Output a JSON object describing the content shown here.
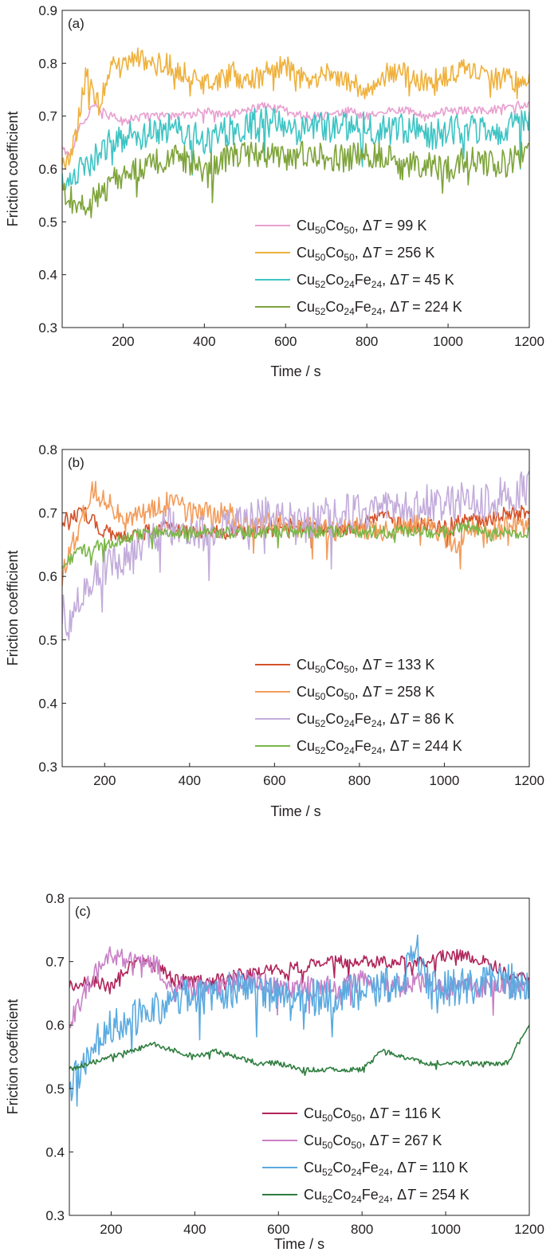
{
  "chart_data": [
    {
      "type": "line",
      "panel_label": "(a)",
      "xlabel": "Time / s",
      "ylabel": "Friction coefficient",
      "xlim": [
        50,
        1200
      ],
      "ylim": [
        0.3,
        0.9
      ],
      "xticks": [
        200,
        400,
        600,
        800,
        1000,
        1200
      ],
      "xtick_labels": [
        "200",
        "400",
        "600",
        "800",
        "1000",
        "1200"
      ],
      "yticks": [
        0.3,
        0.4,
        0.5,
        0.6,
        0.7,
        0.8,
        0.9
      ],
      "ytick_labels": [
        "0.3",
        "0.4",
        "0.5",
        "0.6",
        "0.7",
        "0.8",
        "0.9"
      ],
      "legend_position": "bottom-right",
      "series": [
        {
          "name": "Cu50Co50, ΔT = 99 K",
          "name_parts": {
            "base": "Cu",
            "s1": "50",
            "base2": "Co",
            "s2": "50",
            "suffix": ", ΔT = 99 K"
          },
          "color": "#e8a0d0",
          "x": [
            50,
            70,
            90,
            110,
            130,
            150,
            200,
            250,
            300,
            350,
            400,
            450,
            500,
            550,
            600,
            650,
            700,
            750,
            800,
            850,
            900,
            950,
            1000,
            1050,
            1100,
            1150,
            1200
          ],
          "y": [
            0.64,
            0.62,
            0.68,
            0.7,
            0.72,
            0.71,
            0.69,
            0.7,
            0.7,
            0.7,
            0.71,
            0.7,
            0.71,
            0.72,
            0.71,
            0.7,
            0.7,
            0.71,
            0.7,
            0.71,
            0.71,
            0.7,
            0.71,
            0.71,
            0.71,
            0.72,
            0.72
          ],
          "noise": 0.008
        },
        {
          "name": "Cu50Co50, ΔT = 256 K",
          "name_parts": {
            "base": "Cu",
            "s1": "50",
            "base2": "Co",
            "s2": "50",
            "suffix": ", ΔT = 256 K"
          },
          "color": "#efb13d",
          "x": [
            50,
            80,
            110,
            140,
            170,
            200,
            230,
            260,
            300,
            350,
            400,
            450,
            480,
            500,
            550,
            600,
            620,
            650,
            700,
            750,
            800,
            850,
            900,
            950,
            1000,
            1050,
            1100,
            1150,
            1200
          ],
          "y": [
            0.6,
            0.65,
            0.78,
            0.72,
            0.8,
            0.79,
            0.82,
            0.79,
            0.8,
            0.78,
            0.77,
            0.77,
            0.79,
            0.76,
            0.78,
            0.8,
            0.78,
            0.77,
            0.78,
            0.77,
            0.74,
            0.78,
            0.78,
            0.76,
            0.78,
            0.79,
            0.77,
            0.77,
            0.76
          ],
          "noise": 0.022
        },
        {
          "name": "Cu52Co24Fe24, ΔT = 45 K",
          "name_parts": {
            "base": "Cu",
            "s1": "52",
            "base2": "Co",
            "s2": "24",
            "base3": "Fe",
            "s3": "24",
            "suffix": ", ΔT = 45 K"
          },
          "color": "#3ec4c4",
          "x": [
            50,
            100,
            150,
            200,
            250,
            300,
            350,
            400,
            450,
            500,
            550,
            600,
            650,
            700,
            750,
            800,
            850,
            900,
            950,
            1000,
            1050,
            1100,
            1150,
            1200
          ],
          "y": [
            0.58,
            0.6,
            0.64,
            0.66,
            0.66,
            0.68,
            0.67,
            0.65,
            0.67,
            0.68,
            0.69,
            0.68,
            0.67,
            0.68,
            0.68,
            0.68,
            0.67,
            0.68,
            0.66,
            0.67,
            0.68,
            0.67,
            0.68,
            0.69
          ],
          "noise": 0.03
        },
        {
          "name": "Cu52Co24Fe24, ΔT = 224 K",
          "name_parts": {
            "base": "Cu",
            "s1": "52",
            "base2": "Co",
            "s2": "24",
            "base3": "Fe",
            "s3": "24",
            "suffix": ", ΔT = 224 K"
          },
          "color": "#7ea43a",
          "x": [
            50,
            100,
            150,
            200,
            250,
            300,
            350,
            400,
            450,
            500,
            550,
            600,
            650,
            700,
            750,
            800,
            850,
            900,
            950,
            1000,
            1050,
            1100,
            1150,
            1200
          ],
          "y": [
            0.56,
            0.53,
            0.56,
            0.59,
            0.6,
            0.62,
            0.62,
            0.6,
            0.62,
            0.63,
            0.63,
            0.62,
            0.63,
            0.62,
            0.62,
            0.63,
            0.62,
            0.61,
            0.61,
            0.6,
            0.62,
            0.61,
            0.61,
            0.65
          ],
          "noise": 0.026
        }
      ]
    },
    {
      "type": "line",
      "panel_label": "(b)",
      "xlabel": "Time / s",
      "ylabel": "Friction coefficient",
      "xlim": [
        100,
        1200
      ],
      "ylim": [
        0.3,
        0.8
      ],
      "xticks": [
        200,
        400,
        600,
        800,
        1000,
        1200
      ],
      "xtick_labels": [
        "200",
        "400",
        "600",
        "800",
        "1000",
        "1200"
      ],
      "yticks": [
        0.3,
        0.4,
        0.5,
        0.6,
        0.7,
        0.8
      ],
      "ytick_labels": [
        "0.3",
        "0.4",
        "0.5",
        "0.6",
        "0.7",
        "0.8"
      ],
      "legend_position": "bottom-right",
      "series": [
        {
          "name": "Cu50Co50, ΔT = 133 K",
          "name_parts": {
            "base": "Cu",
            "s1": "50",
            "base2": "Co",
            "s2": "50",
            "suffix": ", ΔT = 133 K"
          },
          "color": "#d4532b",
          "x": [
            100,
            150,
            200,
            250,
            300,
            350,
            400,
            450,
            500,
            550,
            600,
            650,
            700,
            750,
            800,
            850,
            900,
            950,
            1000,
            1050,
            1100,
            1150,
            1200
          ],
          "y": [
            0.69,
            0.7,
            0.67,
            0.66,
            0.67,
            0.68,
            0.67,
            0.67,
            0.67,
            0.67,
            0.68,
            0.68,
            0.68,
            0.67,
            0.68,
            0.7,
            0.68,
            0.68,
            0.68,
            0.69,
            0.69,
            0.7,
            0.7
          ],
          "noise": 0.012
        },
        {
          "name": "Cu50Co50, ΔT = 258 K",
          "name_parts": {
            "base": "Cu",
            "s1": "50",
            "base2": "Co",
            "s2": "50",
            "suffix": ", ΔT = 258 K"
          },
          "color": "#f39c5a",
          "x": [
            100,
            130,
            170,
            200,
            250,
            300,
            350,
            400,
            450,
            500,
            550,
            600,
            650,
            700,
            750,
            800,
            850,
            900,
            950,
            1000,
            1030,
            1050,
            1100,
            1150,
            1200
          ],
          "y": [
            0.6,
            0.66,
            0.74,
            0.72,
            0.69,
            0.7,
            0.72,
            0.7,
            0.7,
            0.7,
            0.68,
            0.69,
            0.68,
            0.68,
            0.67,
            0.68,
            0.67,
            0.68,
            0.68,
            0.67,
            0.64,
            0.68,
            0.67,
            0.68,
            0.68
          ],
          "noise": 0.018
        },
        {
          "name": "Cu52Co24Fe24, ΔT = 86 K",
          "name_parts": {
            "base": "Cu",
            "s1": "52",
            "base2": "Co",
            "s2": "24",
            "base3": "Fe",
            "s3": "24",
            "suffix": ", ΔT = 86 K"
          },
          "color": "#c3acdb",
          "x": [
            100,
            120,
            150,
            200,
            250,
            300,
            350,
            400,
            450,
            500,
            550,
            600,
            650,
            700,
            750,
            800,
            850,
            900,
            950,
            1000,
            1050,
            1100,
            1150,
            1200
          ],
          "y": [
            0.55,
            0.52,
            0.58,
            0.62,
            0.63,
            0.66,
            0.68,
            0.67,
            0.67,
            0.68,
            0.69,
            0.7,
            0.69,
            0.69,
            0.7,
            0.7,
            0.7,
            0.71,
            0.72,
            0.71,
            0.72,
            0.72,
            0.73,
            0.74
          ],
          "noise": 0.03
        },
        {
          "name": "Cu52Co24Fe24, ΔT = 244 K",
          "name_parts": {
            "base": "Cu",
            "s1": "52",
            "base2": "Co",
            "s2": "24",
            "base3": "Fe",
            "s3": "24",
            "suffix": ", ΔT = 244 K"
          },
          "color": "#7ab648",
          "x": [
            100,
            150,
            200,
            250,
            300,
            350,
            400,
            450,
            500,
            550,
            600,
            650,
            700,
            750,
            800,
            850,
            900,
            950,
            1000,
            1050,
            1100,
            1150,
            1200
          ],
          "y": [
            0.62,
            0.64,
            0.65,
            0.66,
            0.67,
            0.67,
            0.67,
            0.67,
            0.67,
            0.67,
            0.67,
            0.67,
            0.67,
            0.67,
            0.67,
            0.67,
            0.67,
            0.67,
            0.67,
            0.68,
            0.67,
            0.67,
            0.67
          ],
          "noise": 0.01
        }
      ]
    },
    {
      "type": "line",
      "panel_label": "(c)",
      "xlabel": "Time / s",
      "ylabel": "Friction coefficient",
      "xlim": [
        100,
        1200
      ],
      "ylim": [
        0.3,
        0.8
      ],
      "xticks": [
        200,
        400,
        600,
        800,
        1000,
        1200
      ],
      "xtick_labels": [
        "200",
        "400",
        "600",
        "800",
        "1000",
        "1200"
      ],
      "yticks": [
        0.3,
        0.4,
        0.5,
        0.6,
        0.7,
        0.8
      ],
      "ytick_labels": [
        "0.3",
        "0.4",
        "0.5",
        "0.6",
        "0.7",
        "0.8"
      ],
      "legend_position": "bottom-right",
      "series": [
        {
          "name": "Cu50Co50, ΔT = 116 K",
          "name_parts": {
            "base": "Cu",
            "s1": "50",
            "base2": "Co",
            "s2": "50",
            "suffix": ", ΔT = 116 K"
          },
          "color": "#b0245a",
          "x": [
            100,
            150,
            200,
            250,
            300,
            350,
            400,
            450,
            500,
            550,
            600,
            650,
            700,
            750,
            800,
            850,
            900,
            950,
            1000,
            1050,
            1100,
            1150,
            1200
          ],
          "y": [
            0.66,
            0.67,
            0.66,
            0.7,
            0.7,
            0.67,
            0.67,
            0.67,
            0.68,
            0.68,
            0.69,
            0.69,
            0.7,
            0.7,
            0.7,
            0.7,
            0.7,
            0.7,
            0.71,
            0.71,
            0.7,
            0.68,
            0.67
          ],
          "noise": 0.01
        },
        {
          "name": "Cu50Co50, ΔT = 267 K",
          "name_parts": {
            "base": "Cu",
            "s1": "50",
            "base2": "Co",
            "s2": "50",
            "suffix": ", ΔT = 267 K"
          },
          "color": "#c880c6",
          "x": [
            100,
            150,
            200,
            250,
            300,
            350,
            400,
            450,
            500,
            550,
            600,
            650,
            700,
            750,
            800,
            850,
            900,
            950,
            1000,
            1050,
            1100,
            1150,
            1200
          ],
          "y": [
            0.6,
            0.67,
            0.71,
            0.7,
            0.7,
            0.66,
            0.66,
            0.66,
            0.67,
            0.67,
            0.66,
            0.66,
            0.66,
            0.66,
            0.67,
            0.66,
            0.66,
            0.67,
            0.66,
            0.66,
            0.66,
            0.66,
            0.66
          ],
          "noise": 0.017
        },
        {
          "name": "Cu52Co24Fe24, ΔT = 110 K",
          "name_parts": {
            "base": "Cu",
            "s1": "52",
            "base2": "Co",
            "s2": "24",
            "base3": "Fe",
            "s3": "24",
            "suffix": ", ΔT = 110 K"
          },
          "color": "#5aaae0",
          "x": [
            100,
            150,
            200,
            250,
            300,
            350,
            400,
            450,
            500,
            550,
            600,
            650,
            700,
            750,
            800,
            850,
            900,
            930,
            950,
            1000,
            1050,
            1100,
            1150,
            1200
          ],
          "y": [
            0.5,
            0.56,
            0.6,
            0.61,
            0.62,
            0.64,
            0.65,
            0.64,
            0.66,
            0.65,
            0.65,
            0.65,
            0.64,
            0.65,
            0.65,
            0.66,
            0.67,
            0.72,
            0.67,
            0.66,
            0.66,
            0.67,
            0.67,
            0.67
          ],
          "noise": 0.03
        },
        {
          "name": "Cu52Co24Fe24, ΔT = 254 K",
          "name_parts": {
            "base": "Cu",
            "s1": "52",
            "base2": "Co",
            "s2": "24",
            "base3": "Fe",
            "s3": "24",
            "suffix": ", ΔT = 254 K"
          },
          "color": "#2e7d3e",
          "x": [
            100,
            150,
            200,
            250,
            300,
            350,
            400,
            450,
            500,
            550,
            600,
            650,
            700,
            750,
            800,
            850,
            900,
            950,
            1000,
            1050,
            1100,
            1150,
            1170,
            1200
          ],
          "y": [
            0.53,
            0.54,
            0.55,
            0.56,
            0.57,
            0.56,
            0.55,
            0.56,
            0.55,
            0.54,
            0.54,
            0.53,
            0.53,
            0.53,
            0.53,
            0.56,
            0.55,
            0.54,
            0.54,
            0.54,
            0.54,
            0.54,
            0.57,
            0.6
          ],
          "noise": 0.004
        }
      ]
    }
  ]
}
